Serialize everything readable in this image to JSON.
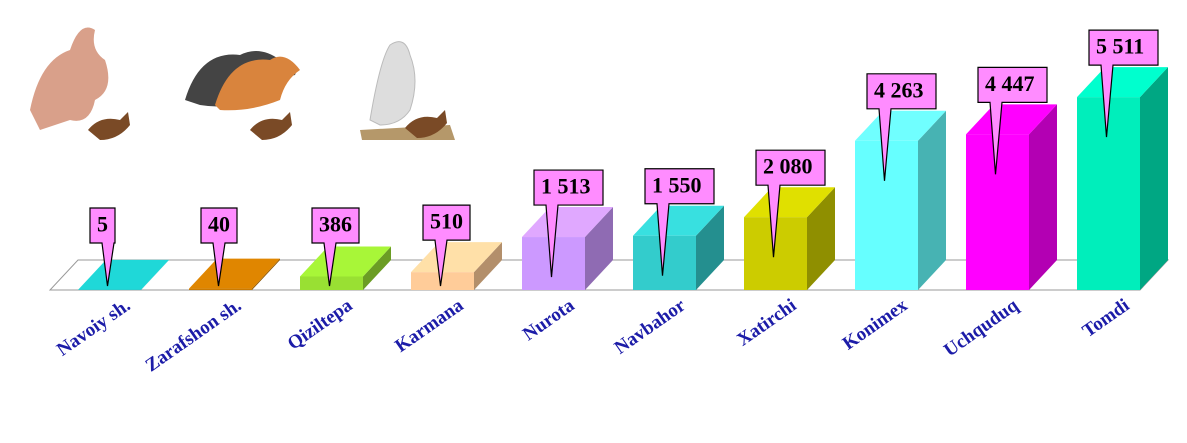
{
  "chart_data": {
    "type": "bar",
    "categories": [
      "Navoiy sh.",
      "Zarafshon sh.",
      "Qiziltepa",
      "Karmana",
      "Nurota",
      "Navbahor",
      "Xatirchi",
      "Konimex",
      "Uchquduq",
      "Tomdi"
    ],
    "values": [
      5,
      40,
      386,
      510,
      1513,
      1550,
      2080,
      4263,
      4447,
      5511
    ],
    "value_labels": [
      "5",
      "40",
      "386",
      "510",
      "1 513",
      "1 550",
      "2 080",
      "4 263",
      "4 447",
      "5 511"
    ],
    "colors": [
      "#1cc4c4",
      "#cc7a00",
      "#99e033",
      "#ffcc99",
      "#cc99ff",
      "#33cccc",
      "#cccc00",
      "#66ffff",
      "#ff00ff",
      "#00eebb"
    ],
    "ylim": [
      0,
      6000
    ]
  }
}
